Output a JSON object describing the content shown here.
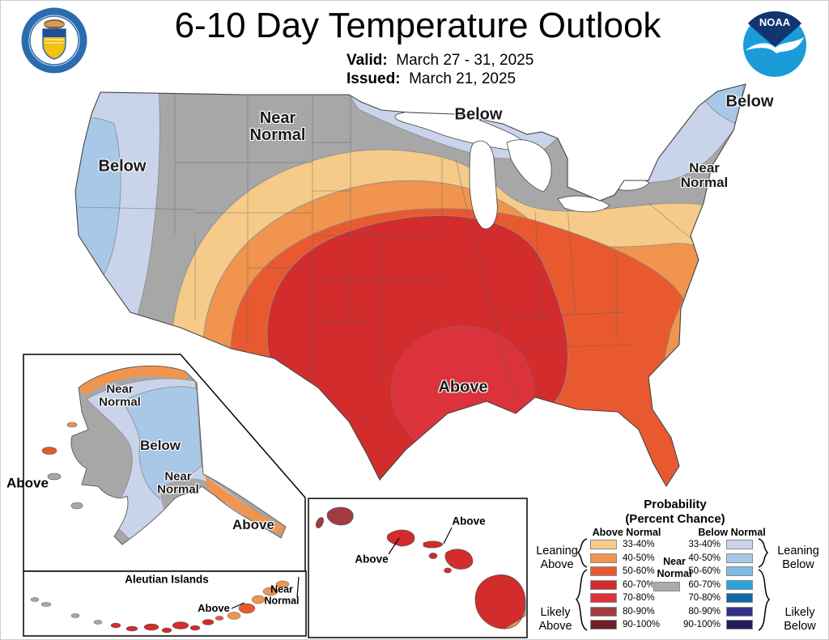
{
  "header": {
    "title": "6-10 Day Temperature Outlook",
    "valid_label": "Valid:",
    "valid_value": "March 27 - 31, 2025",
    "issued_label": "Issued:",
    "issued_value": "March 21, 2025",
    "noaa_logo_text": "NOAA"
  },
  "map_labels": {
    "west_below": "Below",
    "nw_near_normal": "Near\nNormal",
    "north_below": "Below",
    "ne_below": "Below",
    "ne_near_normal": "Near\nNormal",
    "center_above": "Above"
  },
  "alaska_labels": {
    "nw_near_normal": "Near\nNormal",
    "center_below": "Below",
    "south_near_normal": "Near\nNormal",
    "panhandle_above": "Above",
    "west_above": "Above"
  },
  "aleutian": {
    "title": "Aleutian Islands",
    "above": "Above",
    "near_normal": "Near\nNormal"
  },
  "hawaii": {
    "above_molokai": "Above",
    "above_oahu": "Above"
  },
  "legend": {
    "title_line1": "Probability",
    "title_line2": "(Percent Chance)",
    "above_header": "Above Normal",
    "below_header": "Below Normal",
    "near_normal": "Near\nNormal",
    "leaning_above": "Leaning\nAbove",
    "likely_above": "Likely\nAbove",
    "leaning_below": "Leaning\nBelow",
    "likely_below": "Likely\nBelow",
    "ranges": [
      "33-40%",
      "40-50%",
      "50-60%",
      "60-70%",
      "70-80%",
      "80-90%",
      "90-100%"
    ]
  },
  "colors": {
    "above": [
      "#F6CA88",
      "#F0944E",
      "#E95930",
      "#D22C2C",
      "#DC333E",
      "#A33C40",
      "#6E2127"
    ],
    "below": [
      "#C9D4EB",
      "#A9C8E8",
      "#7FBCE5",
      "#2FA1DC",
      "#0E68A8",
      "#32308C",
      "#201D5A"
    ],
    "near_normal": "#ABABAB",
    "map_gray": "#A7A7A7",
    "outline": "#444444"
  }
}
